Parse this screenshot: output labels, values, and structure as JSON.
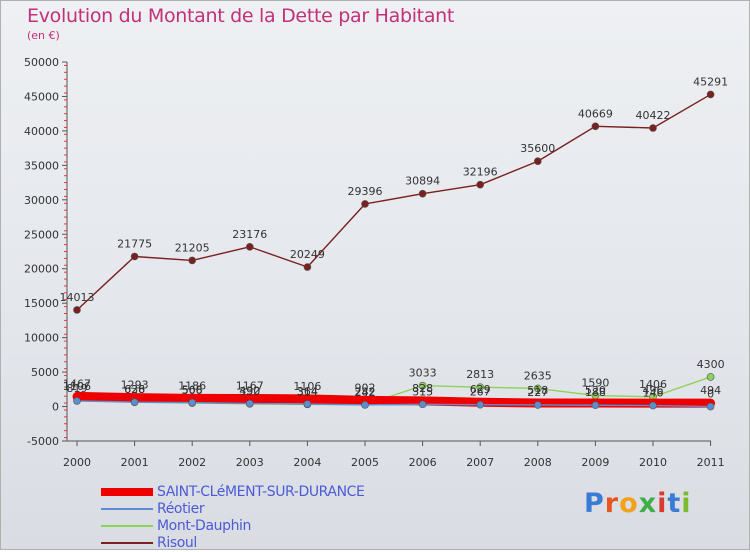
{
  "title": "Evolution du Montant de la Dette par Habitant",
  "unit": "(en €)",
  "brand": {
    "text": "Proxiti",
    "colors": [
      "#3a7bd5",
      "#e8541e",
      "#f2a21a",
      "#3fae49",
      "#d93a2e",
      "#3a7bd5",
      "#7dbb2e"
    ]
  },
  "chart_data": {
    "type": "line",
    "x": [
      "2000",
      "2001",
      "2002",
      "2003",
      "2004",
      "2005",
      "2006",
      "2007",
      "2008",
      "2009",
      "2010",
      "2011"
    ],
    "ylim": [
      -5000,
      50000
    ],
    "yticks": [
      -5000,
      0,
      5000,
      10000,
      15000,
      20000,
      25000,
      30000,
      35000,
      40000,
      45000,
      50000
    ],
    "grid": false,
    "legend_position": "bottom-left",
    "series": [
      {
        "name": "SAINT-CLéMENT-SUR-DURANCE",
        "color": "#ee0000",
        "values": [
          1467,
          1293,
          1186,
          1167,
          1106,
          902,
          828,
          629,
          518,
          520,
          496,
          494
        ],
        "labels": [
          "1467",
          "1293",
          "1186",
          "1167",
          "1106",
          "902",
          "828",
          "629",
          "518",
          "520",
          "496",
          "494"
        ]
      },
      {
        "name": "Réotier",
        "color": "#5b8ed0",
        "values": [
          819,
          638,
          568,
          432,
          364,
          242,
          315,
          267,
          227,
          188,
          146,
          0
        ],
        "labels": [
          "819",
          "638",
          "568",
          "432",
          "364",
          "242",
          "315",
          "267",
          "227",
          "188",
          "146",
          "0"
        ]
      },
      {
        "name": "Mont-Dauphin",
        "color": "#8ed25a",
        "values": [
          1106,
          626,
          506,
          390,
          314,
          282,
          3033,
          2813,
          2635,
          1590,
          1406,
          4300
        ],
        "labels": [
          "1106",
          "626",
          "506",
          "390",
          "314",
          "282",
          "3033",
          "2813",
          "2635",
          "1590",
          "1406",
          "4300"
        ]
      },
      {
        "name": "Risoul",
        "color": "#7a2020",
        "values": [
          14013,
          21775,
          21205,
          23176,
          20249,
          29396,
          30894,
          32196,
          35600,
          40669,
          40422,
          45291
        ],
        "labels": [
          "14013",
          "21775",
          "21205",
          "23176",
          "20249",
          "29396",
          "30894",
          "32196",
          "35600",
          "40669",
          "40422",
          "45291"
        ]
      }
    ]
  }
}
